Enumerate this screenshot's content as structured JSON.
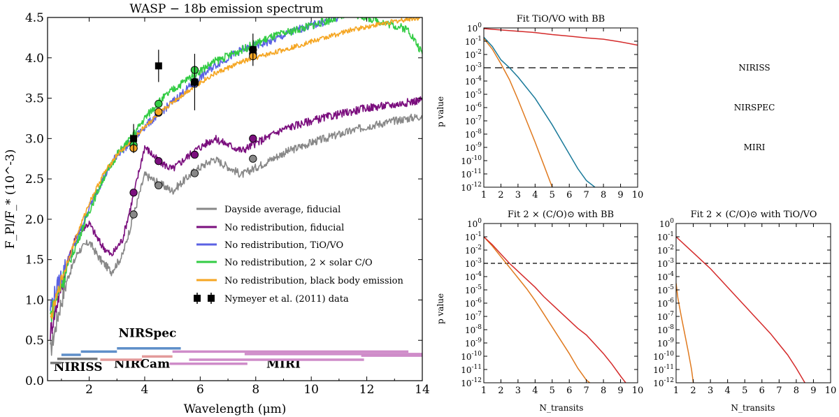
{
  "chart_data": [
    {
      "type": "line",
      "title": "WASP − 18b emission spectrum",
      "xlabel": "Wavelength (μm)",
      "ylabel": "F_Pl/F_* (10^-3)",
      "xlim": [
        0.5,
        14
      ],
      "ylim": [
        0,
        4.5
      ],
      "xticks": [
        "2",
        "4",
        "6",
        "8",
        "10",
        "12",
        "14"
      ],
      "yticks": [
        "0.0",
        "0.5",
        "1.0",
        "1.5",
        "2.0",
        "2.5",
        "3.0",
        "3.5",
        "4.0",
        "4.5"
      ],
      "series": [
        {
          "name": "Dayside average, fiducial",
          "color": "#888888",
          "x": [
            0.6,
            0.9,
            1.2,
            1.6,
            2.0,
            2.4,
            2.8,
            3.2,
            3.6,
            4.0,
            4.5,
            5.0,
            5.8,
            6.5,
            7.5,
            9,
            10,
            11,
            12,
            13,
            14
          ],
          "y": [
            0.35,
            0.85,
            1.25,
            1.6,
            1.72,
            1.5,
            1.35,
            1.55,
            2.05,
            2.55,
            2.45,
            2.35,
            2.6,
            2.75,
            2.55,
            2.82,
            2.95,
            3.05,
            3.15,
            3.22,
            3.28
          ]
        },
        {
          "name": "No redistribution, fiducial",
          "color": "#7b0f7e",
          "x": [
            0.6,
            0.9,
            1.2,
            1.6,
            2.0,
            2.4,
            2.8,
            3.2,
            3.6,
            4.0,
            4.5,
            5.0,
            5.8,
            6.5,
            7.5,
            9,
            10,
            11,
            12,
            13,
            14
          ],
          "y": [
            0.6,
            1.05,
            1.45,
            1.85,
            1.95,
            1.7,
            1.55,
            1.75,
            2.3,
            2.9,
            2.72,
            2.62,
            2.85,
            3.0,
            2.85,
            3.12,
            3.22,
            3.3,
            3.38,
            3.42,
            3.48
          ]
        },
        {
          "name": "No redistribution, TiO/VO",
          "color": "#5b62e3",
          "x": [
            0.6,
            1.0,
            1.5,
            2.0,
            2.5,
            3.0,
            3.5,
            4.0,
            4.5,
            5.0,
            5.8,
            6.5,
            7.5,
            8.5,
            9.5,
            10.5,
            11.0
          ],
          "y": [
            0.9,
            1.3,
            1.7,
            2.15,
            2.5,
            2.8,
            2.95,
            3.15,
            3.3,
            3.45,
            3.7,
            3.9,
            4.1,
            4.2,
            4.35,
            4.45,
            4.5
          ]
        },
        {
          "name": "No redistribution, 2 × solar C/O",
          "color": "#33cc44",
          "x": [
            0.6,
            1.0,
            1.5,
            2.0,
            2.5,
            3.0,
            3.5,
            4.0,
            4.5,
            5.0,
            5.8,
            6.5,
            7.5,
            8.5,
            9.5,
            10.5,
            11.5,
            12.5,
            13.5,
            14
          ],
          "y": [
            0.8,
            1.2,
            1.65,
            2.1,
            2.5,
            2.8,
            3.0,
            3.25,
            3.45,
            3.6,
            3.8,
            3.95,
            4.1,
            4.25,
            4.35,
            4.45,
            4.55,
            4.45,
            4.35,
            4.05
          ]
        },
        {
          "name": "No redistribution, black body emission",
          "color": "#f5a623",
          "x": [
            0.6,
            1.0,
            1.5,
            2.0,
            2.5,
            3.0,
            3.5,
            4.0,
            4.5,
            5.0,
            5.8,
            6.5,
            7.5,
            8.5,
            9.5,
            10.5,
            11.5,
            12.5,
            13.5,
            14
          ],
          "y": [
            0.75,
            1.25,
            1.75,
            2.2,
            2.55,
            2.8,
            2.95,
            3.15,
            3.3,
            3.45,
            3.65,
            3.8,
            3.95,
            4.05,
            4.15,
            4.25,
            4.35,
            4.42,
            4.48,
            4.5
          ]
        }
      ],
      "model_circles": [
        {
          "series": "Dayside average, fiducial",
          "color": "#888888",
          "x": [
            3.6,
            4.5,
            5.8,
            7.9
          ],
          "y": [
            2.06,
            2.42,
            2.57,
            2.75
          ]
        },
        {
          "series": "No redistribution, fiducial",
          "color": "#7b0f7e",
          "x": [
            3.6,
            4.5,
            5.8,
            7.9
          ],
          "y": [
            2.33,
            2.72,
            2.8,
            3.0
          ]
        },
        {
          "series": "No redistribution, TiO/VO",
          "color": "#5b62e3",
          "x": [
            3.6,
            4.5,
            5.8,
            7.9
          ],
          "y": [
            2.88,
            3.32,
            3.68,
            4.05
          ]
        },
        {
          "series": "No redistribution, 2 × solar C/O",
          "color": "#33cc44",
          "x": [
            3.6,
            4.5,
            5.8,
            7.9
          ],
          "y": [
            2.92,
            3.43,
            3.85,
            4.1
          ]
        },
        {
          "series": "No redistribution, black body emission",
          "color": "#f5a623",
          "x": [
            3.6,
            4.5,
            5.8,
            7.9
          ],
          "y": [
            2.88,
            3.33,
            3.7,
            4.02
          ]
        }
      ],
      "observed": {
        "name": "Nymeyer et al. (2011) data",
        "x": [
          3.6,
          4.5,
          5.8,
          7.9
        ],
        "y": [
          3.0,
          3.9,
          3.7,
          4.1
        ],
        "err": [
          0.18,
          0.2,
          0.35,
          0.2
        ]
      },
      "instruments": [
        {
          "name": "NIRISS",
          "color": "#7a7a7a",
          "label_x": 1.6,
          "label_y": 0.12,
          "bars": [
            [
              0.6,
              1.0,
              0.22
            ],
            [
              0.85,
              2.3,
              0.27
            ]
          ]
        },
        {
          "name": "NIRSpec",
          "color": "#5f8fc9",
          "label_x": 4.1,
          "label_y": 0.54,
          "bars": [
            [
              1.0,
              1.7,
              0.32
            ],
            [
              1.7,
              3.0,
              0.36
            ],
            [
              3.0,
              5.3,
              0.4
            ]
          ]
        },
        {
          "name": "NIRCam",
          "color": "#e39a9a",
          "label_x": 3.9,
          "label_y": 0.16,
          "bars": [
            [
              2.4,
              3.9,
              0.26
            ],
            [
              3.9,
              5.0,
              0.3
            ]
          ]
        },
        {
          "name": "MIRI",
          "color": "#cf8cc9",
          "label_x": 9.0,
          "label_y": 0.16,
          "bars": [
            [
              4.9,
              7.7,
              0.21
            ],
            [
              5.6,
              11.9,
              0.26
            ],
            [
              5.0,
              13.5,
              0.36
            ],
            [
              11.8,
              14.0,
              0.31
            ],
            [
              7.6,
              14.0,
              0.33
            ]
          ]
        }
      ]
    },
    {
      "type": "line",
      "title": "Fit TiO/VO with BB",
      "xlabel": "",
      "ylabel": "p value",
      "xlim": [
        1,
        10
      ],
      "ylim_log10": [
        -12,
        0
      ],
      "threshold": 0.001,
      "xticks": [
        "1",
        "2",
        "3",
        "4",
        "5",
        "6",
        "7",
        "8",
        "9",
        "10"
      ],
      "yticks": [
        "10^0",
        "10^-1",
        "10^-2",
        "10^-3",
        "10^-4",
        "10^-5",
        "10^-6",
        "10^-7",
        "10^-8",
        "10^-9",
        "10^-10",
        "10^-11",
        "10^-12"
      ],
      "series": [
        {
          "name": "NIRISS",
          "color": "#1a7a9a",
          "x": [
            1,
            1.5,
            2,
            2.5,
            3,
            3.5,
            4,
            4.5,
            5,
            5.5,
            6,
            6.5,
            7,
            7.5
          ],
          "log10_p": [
            -0.7,
            -1.4,
            -2.4,
            -3.0,
            -3.7,
            -4.5,
            -5.3,
            -6.3,
            -7.3,
            -8.4,
            -9.5,
            -10.6,
            -11.5,
            -12
          ]
        },
        {
          "name": "NIRSPEC",
          "color": "#e07a1f",
          "x": [
            1,
            1.5,
            2,
            2.5,
            3,
            3.5,
            4,
            4.5,
            5
          ],
          "log10_p": [
            -0.8,
            -1.6,
            -2.7,
            -3.9,
            -5.4,
            -7.0,
            -8.6,
            -10.3,
            -12
          ]
        },
        {
          "name": "MIRI",
          "color": "#d42a2a",
          "x": [
            1,
            2,
            3,
            4,
            5,
            6,
            7,
            8,
            9,
            10
          ],
          "log10_p": [
            -0.05,
            -0.15,
            -0.25,
            -0.35,
            -0.5,
            -0.62,
            -0.75,
            -0.85,
            -1.05,
            -1.3
          ]
        }
      ],
      "legend": [
        "NIRISS",
        "NIRSPEC",
        "MIRI"
      ]
    },
    {
      "type": "line",
      "title": "Fit 2 × (C/O)⊙ with BB",
      "xlabel": "N_transits",
      "ylabel": "p value",
      "xlim": [
        1,
        10
      ],
      "ylim_log10": [
        -12,
        0
      ],
      "threshold": 0.001,
      "xticks": [
        "1",
        "2",
        "3",
        "4",
        "5",
        "6",
        "7",
        "8",
        "9",
        "10"
      ],
      "yticks": [
        "10^0",
        "10^-1",
        "10^-2",
        "10^-3",
        "10^-4",
        "10^-5",
        "10^-6",
        "10^-7",
        "10^-8",
        "10^-9",
        "10^-10",
        "10^-11",
        "10^-12"
      ],
      "series": [
        {
          "name": "NIRSPEC",
          "color": "#e07a1f",
          "x": [
            1,
            1.5,
            2,
            2.5,
            3,
            3.5,
            4,
            4.5,
            5,
            5.5,
            6,
            6.5,
            7,
            7.2
          ],
          "log10_p": [
            -1.0,
            -1.7,
            -2.5,
            -3.3,
            -4.1,
            -4.9,
            -5.8,
            -6.8,
            -7.8,
            -8.8,
            -9.8,
            -10.9,
            -11.8,
            -12
          ]
        },
        {
          "name": "MIRI",
          "color": "#d42a2a",
          "x": [
            1,
            1.5,
            2,
            2.5,
            3,
            3.5,
            4,
            4.5,
            5,
            5.5,
            6,
            6.5,
            7,
            7.5,
            8,
            8.5,
            9,
            9.3
          ],
          "log10_p": [
            -1.0,
            -1.6,
            -2.3,
            -3.0,
            -3.6,
            -4.2,
            -4.8,
            -5.5,
            -6.1,
            -6.7,
            -7.3,
            -7.9,
            -8.4,
            -9.1,
            -9.8,
            -10.6,
            -11.5,
            -12
          ]
        }
      ]
    },
    {
      "type": "line",
      "title": "Fit 2 × (C/O)⊙ with TiO/VO",
      "xlabel": "N_transits",
      "ylabel": "",
      "xlim": [
        1,
        10
      ],
      "ylim_log10": [
        -12,
        0
      ],
      "threshold": 0.001,
      "xticks": [
        "1",
        "2",
        "3",
        "4",
        "5",
        "6",
        "7",
        "8",
        "9",
        "10"
      ],
      "yticks": [
        "10^0",
        "10^-1",
        "10^-2",
        "10^-3",
        "10^-4",
        "10^-5",
        "10^-6",
        "10^-7",
        "10^-8",
        "10^-9",
        "10^-10",
        "10^-11",
        "10^-12"
      ],
      "series": [
        {
          "name": "NIRSPEC",
          "color": "#e07a1f",
          "x": [
            1.0,
            1.1,
            1.3,
            1.5,
            1.7,
            1.9,
            2.0
          ],
          "log10_p": [
            -4.5,
            -5.6,
            -7.0,
            -8.3,
            -9.6,
            -11.0,
            -12
          ]
        },
        {
          "name": "MIRI",
          "color": "#d42a2a",
          "x": [
            1,
            1.5,
            2,
            2.5,
            3,
            3.5,
            4,
            4.5,
            5,
            5.5,
            6,
            6.5,
            7,
            7.5,
            8,
            8.5
          ],
          "log10_p": [
            -1.0,
            -1.6,
            -2.2,
            -2.8,
            -3.4,
            -4.1,
            -4.8,
            -5.5,
            -6.2,
            -6.9,
            -7.6,
            -8.3,
            -9.1,
            -9.9,
            -10.9,
            -12
          ]
        }
      ]
    }
  ]
}
